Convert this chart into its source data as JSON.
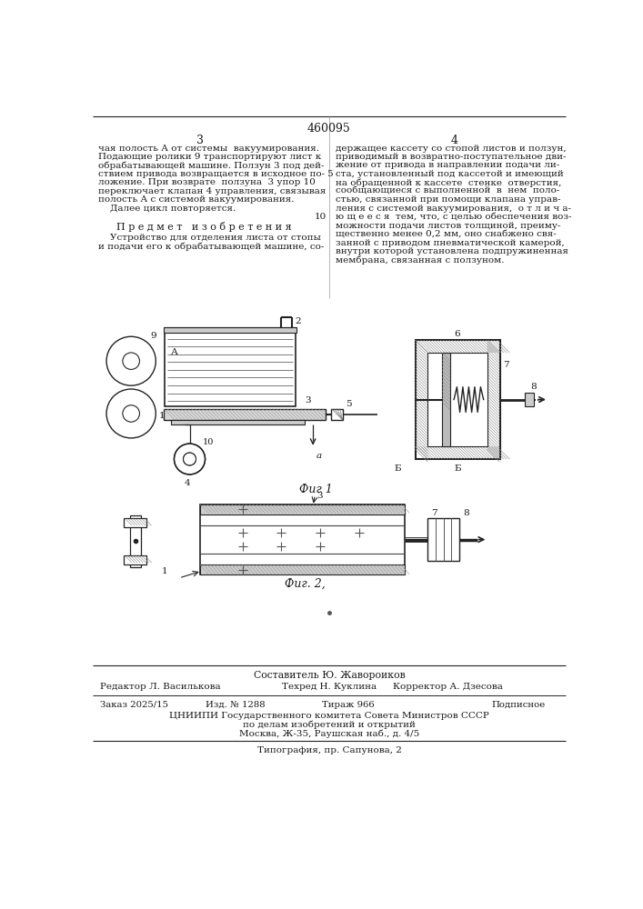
{
  "page_number": "460095",
  "col_left": "3",
  "col_right": "4",
  "fig1_caption": "Фиг 1",
  "fig2_caption": "Фиг. 2,",
  "footer_compiler": "Составитель Ю. Жавороиков",
  "footer_editor": "Редактор Л. Василькова",
  "footer_techred": "Техред Н. Куклина",
  "footer_corrector": "Корректор А. Дзесова",
  "footer_order": "Заказ 2025/15",
  "footer_edition": "Изд. № 1288",
  "footer_tirazh": "Тираж 966",
  "footer_podpisnoe": "Подписное",
  "footer_org1": "ЦНИИПИ Государственного комитета Совета Министров СССР",
  "footer_org2": "по делам изобретений и открытий",
  "footer_org3": "Москва, Ж-35, Раушская наб., д. 4/5",
  "footer_print": "Типография, пр. Сапунова, 2",
  "bg_color": "#ffffff",
  "text_color": "#1a1a1a",
  "line_color": "#222222",
  "hatch_color": "#555555"
}
